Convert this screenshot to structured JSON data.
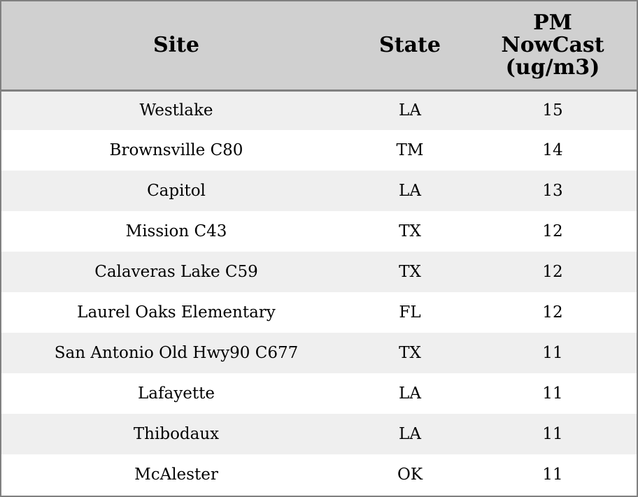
{
  "chart_data": {
    "type": "table",
    "columns": [
      "Site",
      "State",
      "PM\nNowCast\n(ug/m3)"
    ],
    "rows": [
      [
        "Westlake",
        "LA",
        "15"
      ],
      [
        "Brownsville C80",
        "TM",
        "14"
      ],
      [
        "Capitol",
        "LA",
        "13"
      ],
      [
        "Mission C43",
        "TX",
        "12"
      ],
      [
        "Calaveras Lake C59",
        "TX",
        "12"
      ],
      [
        "Laurel Oaks Elementary",
        "FL",
        "12"
      ],
      [
        "San Antonio Old Hwy90 C677",
        "TX",
        "11"
      ],
      [
        "Lafayette",
        "LA",
        "11"
      ],
      [
        "Thibodaux",
        "LA",
        "11"
      ],
      [
        "McAlester",
        "OK",
        "11"
      ]
    ]
  },
  "colors": {
    "header_bg": "#d0d0d0",
    "stripe_bg": "#efefef",
    "plain_bg": "#ffffff",
    "border": "#808080",
    "text": "#000000"
  }
}
